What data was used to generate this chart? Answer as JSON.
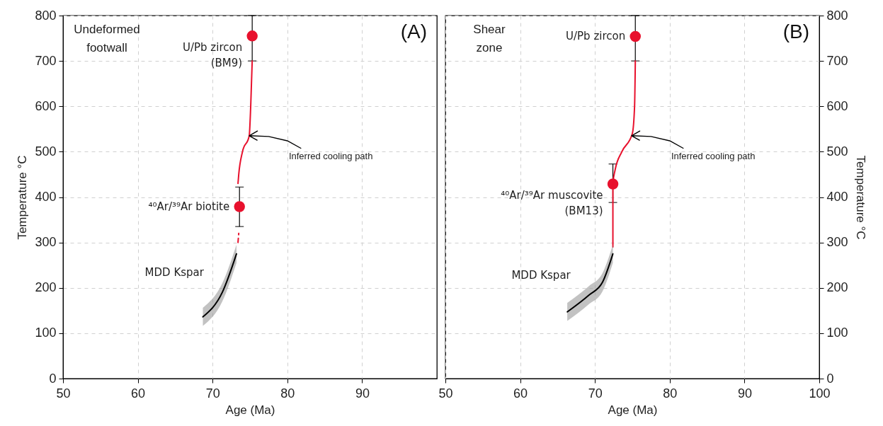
{
  "chart_data": [
    {
      "type": "scatter",
      "title": "(A)",
      "subtitle": "Undeformed footwall",
      "xlabel": "Age (Ma)",
      "ylabel": "Temperature °C",
      "xlim": [
        50,
        100
      ],
      "ylim": [
        0,
        800
      ],
      "xticks": [
        50,
        60,
        70,
        80,
        90
      ],
      "yticks": [
        0,
        100,
        200,
        300,
        400,
        500,
        600,
        700,
        800
      ],
      "grid": true,
      "annotations": [
        "Inferred cooling path"
      ],
      "series": [
        {
          "name": "U/Pb zircon (BM9)",
          "marker": "circle",
          "color": "#e8112d",
          "x": [
            75.3
          ],
          "values": [
            755
          ],
          "errors": [
            [
              700,
              800
            ]
          ]
        },
        {
          "name": "⁴⁰Ar/³⁹Ar biotite",
          "marker": "circle",
          "color": "#e8112d",
          "x": [
            73.6
          ],
          "values": [
            379
          ],
          "errors": [
            [
              335,
              422
            ]
          ]
        },
        {
          "type": "line",
          "color": "#e8112d",
          "x": [
            73.4,
            73.5,
            74.0,
            74.9,
            75.1,
            75.3
          ],
          "values": [
            430,
            450,
            500,
            535,
            600,
            700
          ]
        },
        {
          "type": "line",
          "color": "#e8112d",
          "line_style": "dashed",
          "x": [
            73.4,
            73.5
          ],
          "values": [
            300,
            320
          ]
        },
        {
          "name": "MDD Kspar",
          "type": "line",
          "color": "#000000",
          "x": [
            68.7,
            71.3,
            73.2
          ],
          "values": [
            136,
            190,
            275
          ],
          "lower": [
            116,
            170,
            255
          ],
          "upper": [
            156,
            210,
            295
          ]
        }
      ]
    },
    {
      "type": "scatter",
      "title": "(B)",
      "subtitle": "Shear zone",
      "xlabel": "Age (Ma)",
      "ylabel": "Temperature °C",
      "xlim": [
        50,
        100
      ],
      "ylim": [
        0,
        800
      ],
      "xticks": [
        50,
        60,
        70,
        80,
        90,
        100
      ],
      "yticks": [
        0,
        100,
        200,
        300,
        400,
        500,
        600,
        700,
        800
      ],
      "grid": true,
      "annotations": [
        "Inferred cooling path"
      ],
      "series": [
        {
          "name": "U/Pb zircon",
          "marker": "circle",
          "color": "#e8112d",
          "x": [
            75.4
          ],
          "values": [
            754
          ],
          "errors": [
            [
              700,
              800
            ]
          ]
        },
        {
          "name": "⁴⁰Ar/³⁹Ar muscovite (BM13)",
          "marker": "circle",
          "color": "#e8112d",
          "x": [
            72.4
          ],
          "values": [
            429
          ],
          "errors": [
            [
              388,
              473
            ]
          ]
        },
        {
          "type": "line",
          "color": "#e8112d",
          "x": [
            72.4,
            72.4,
            72.7,
            73.6,
            75.0,
            75.3,
            75.4
          ],
          "values": [
            290,
            430,
            460,
            500,
            540,
            600,
            700
          ]
        },
        {
          "name": "MDD Kspar",
          "type": "line",
          "color": "#000000",
          "x": [
            66.3,
            69.2,
            71.0,
            72.4
          ],
          "values": [
            147,
            184,
            212,
            275
          ],
          "lower": [
            127,
            164,
            192,
            255
          ],
          "upper": [
            167,
            204,
            232,
            295
          ]
        }
      ]
    }
  ]
}
